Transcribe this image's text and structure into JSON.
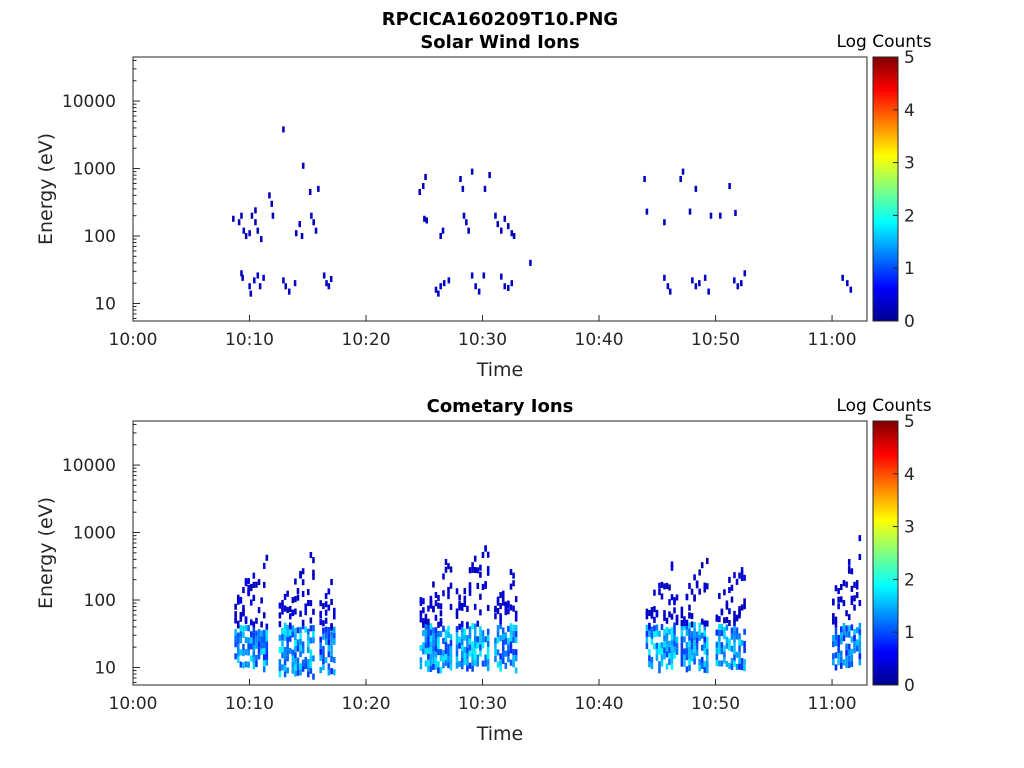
{
  "figure_title": "RPCICA160209T10.PNG",
  "chart_data": [
    {
      "type": "heatmap",
      "title": "Solar Wind Ions",
      "xlabel": "Time",
      "ylabel": "Energy (eV)",
      "x_ticks": [
        "10:00",
        "10:10",
        "10:20",
        "10:30",
        "10:40",
        "10:50",
        "11:00"
      ],
      "y_ticks": [
        "10",
        "100",
        "1000",
        "10000"
      ],
      "y_scale": "log",
      "ylim": [
        5.5,
        45000
      ],
      "xlim_minutes": [
        0,
        63
      ],
      "colorbar": {
        "label": "Log Counts",
        "min": 0,
        "max": 5,
        "ticks": [
          "0",
          "1",
          "2",
          "3",
          "4",
          "5"
        ]
      },
      "cells": [
        [
          8.5,
          180,
          0.3
        ],
        [
          9.0,
          160,
          0.3
        ],
        [
          9.2,
          200,
          0.3
        ],
        [
          9.4,
          120,
          0.3
        ],
        [
          9.6,
          100,
          0.3
        ],
        [
          9.9,
          110,
          0.3
        ],
        [
          10.1,
          200,
          0.3
        ],
        [
          10.4,
          160,
          0.3
        ],
        [
          10.6,
          120,
          0.3
        ],
        [
          10.9,
          90,
          0.3
        ],
        [
          10.4,
          240,
          0.3
        ],
        [
          11.6,
          400,
          0.3
        ],
        [
          11.8,
          300,
          0.3
        ],
        [
          11.9,
          200,
          0.3
        ],
        [
          12.8,
          3800,
          0.3
        ],
        [
          13.9,
          110,
          0.3
        ],
        [
          14.2,
          150,
          0.3
        ],
        [
          14.4,
          100,
          0.3
        ],
        [
          14.5,
          1100,
          0.3
        ],
        [
          15.1,
          450,
          0.3
        ],
        [
          15.2,
          200,
          0.3
        ],
        [
          15.4,
          160,
          0.3
        ],
        [
          15.6,
          120,
          0.3
        ],
        [
          15.8,
          500,
          0.3
        ],
        [
          9.2,
          28,
          0.35
        ],
        [
          9.3,
          24,
          0.35
        ],
        [
          9.9,
          18,
          0.35
        ],
        [
          10.0,
          14,
          0.35
        ],
        [
          10.3,
          22,
          0.35
        ],
        [
          10.6,
          26,
          0.35
        ],
        [
          10.8,
          18,
          0.35
        ],
        [
          11.1,
          24,
          0.35
        ],
        [
          12.8,
          22,
          0.35
        ],
        [
          13.0,
          18,
          0.35
        ],
        [
          13.3,
          15,
          0.35
        ],
        [
          13.8,
          20,
          0.35
        ],
        [
          16.3,
          26,
          0.35
        ],
        [
          16.5,
          20,
          0.35
        ],
        [
          16.7,
          18,
          0.35
        ],
        [
          16.9,
          23,
          0.35
        ],
        [
          24.5,
          450,
          0.3
        ],
        [
          24.8,
          550,
          0.3
        ],
        [
          25.0,
          750,
          0.3
        ],
        [
          24.9,
          180,
          0.3
        ],
        [
          25.1,
          170,
          0.3
        ],
        [
          26.3,
          100,
          0.3
        ],
        [
          26.5,
          120,
          0.3
        ],
        [
          28.0,
          700,
          0.3
        ],
        [
          28.2,
          500,
          0.3
        ],
        [
          28.3,
          200,
          0.3
        ],
        [
          28.5,
          160,
          0.3
        ],
        [
          28.7,
          120,
          0.3
        ],
        [
          29.0,
          900,
          0.3
        ],
        [
          30.1,
          500,
          0.3
        ],
        [
          31.0,
          200,
          0.3
        ],
        [
          31.2,
          150,
          0.3
        ],
        [
          31.5,
          120,
          0.3
        ],
        [
          31.8,
          180,
          0.3
        ],
        [
          32.1,
          140,
          0.3
        ],
        [
          32.4,
          110,
          0.3
        ],
        [
          32.6,
          100,
          0.3
        ],
        [
          30.5,
          800,
          0.3
        ],
        [
          25.9,
          16,
          0.35
        ],
        [
          26.1,
          14,
          0.35
        ],
        [
          26.3,
          18,
          0.35
        ],
        [
          26.6,
          20,
          0.35
        ],
        [
          27.0,
          22,
          0.35
        ],
        [
          29.0,
          26,
          0.35
        ],
        [
          29.3,
          18,
          0.35
        ],
        [
          29.6,
          15,
          0.35
        ],
        [
          30.0,
          26,
          0.35
        ],
        [
          31.5,
          25,
          0.35
        ],
        [
          31.8,
          18,
          0.35
        ],
        [
          32.1,
          17,
          0.35
        ],
        [
          32.4,
          20,
          0.35
        ],
        [
          34.0,
          40,
          0.35
        ],
        [
          43.8,
          700,
          0.3
        ],
        [
          44.0,
          230,
          0.3
        ],
        [
          45.5,
          160,
          0.3
        ],
        [
          46.9,
          700,
          0.3
        ],
        [
          47.1,
          900,
          0.3
        ],
        [
          47.7,
          230,
          0.3
        ],
        [
          48.2,
          500,
          0.3
        ],
        [
          49.5,
          200,
          0.3
        ],
        [
          50.3,
          200,
          0.3
        ],
        [
          51.1,
          550,
          0.3
        ],
        [
          51.6,
          220,
          0.3
        ],
        [
          45.5,
          24,
          0.35
        ],
        [
          45.8,
          18,
          0.35
        ],
        [
          46.0,
          15,
          0.35
        ],
        [
          47.9,
          22,
          0.35
        ],
        [
          48.2,
          18,
          0.35
        ],
        [
          48.5,
          20,
          0.35
        ],
        [
          49.0,
          24,
          0.35
        ],
        [
          49.3,
          15,
          0.35
        ],
        [
          51.5,
          22,
          0.35
        ],
        [
          51.8,
          18,
          0.35
        ],
        [
          52.1,
          20,
          0.35
        ],
        [
          52.4,
          28,
          0.35
        ],
        [
          60.8,
          24,
          0.35
        ],
        [
          61.2,
          20,
          0.35
        ],
        [
          61.5,
          16,
          0.35
        ]
      ]
    },
    {
      "type": "heatmap",
      "title": "Cometary Ions",
      "xlabel": "Time",
      "ylabel": "Energy (eV)",
      "x_ticks": [
        "10:00",
        "10:10",
        "10:20",
        "10:30",
        "10:40",
        "10:50",
        "11:00"
      ],
      "y_ticks": [
        "10",
        "100",
        "1000",
        "10000"
      ],
      "y_scale": "log",
      "ylim": [
        5.5,
        45000
      ],
      "xlim_minutes": [
        0,
        63
      ],
      "colorbar": {
        "label": "Log Counts",
        "min": 0,
        "max": 5,
        "ticks": [
          "0",
          "1",
          "2",
          "3",
          "4",
          "5"
        ]
      },
      "bursts": [
        {
          "t0": 8.7,
          "t1": 11.6,
          "e_low": 10,
          "e_high": 650,
          "peak": 1.8
        },
        {
          "t0": 12.5,
          "t1": 15.6,
          "e_low": 8,
          "e_high": 600,
          "peak": 1.9
        },
        {
          "t0": 16.0,
          "t1": 17.4,
          "e_low": 9,
          "e_high": 450,
          "peak": 1.6
        },
        {
          "t0": 24.6,
          "t1": 27.4,
          "e_low": 10,
          "e_high": 650,
          "peak": 1.8
        },
        {
          "t0": 27.7,
          "t1": 30.6,
          "e_low": 10,
          "e_high": 1200,
          "peak": 1.9
        },
        {
          "t0": 31.0,
          "t1": 33.0,
          "e_low": 10,
          "e_high": 450,
          "peak": 1.8
        },
        {
          "t0": 44.0,
          "t1": 46.8,
          "e_low": 10,
          "e_high": 550,
          "peak": 1.9
        },
        {
          "t0": 47.0,
          "t1": 49.4,
          "e_low": 10,
          "e_high": 550,
          "peak": 1.8
        },
        {
          "t0": 50.0,
          "t1": 52.6,
          "e_low": 10,
          "e_high": 550,
          "peak": 1.8
        },
        {
          "t0": 60.0,
          "t1": 62.5,
          "e_low": 10,
          "e_high": 1000,
          "peak": 1.6
        }
      ]
    }
  ]
}
